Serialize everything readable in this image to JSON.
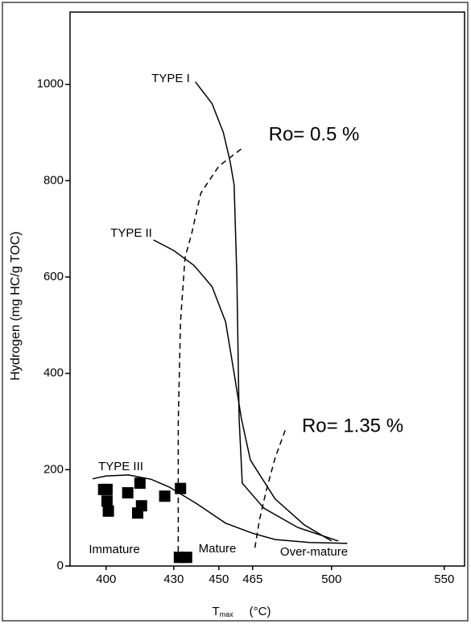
{
  "chart_data": {
    "type": "scatter",
    "y_label": "Hydrogen (mg HC/g TOC)",
    "x_label": {
      "main": "T",
      "sub": "max",
      "unit": "(°C)"
    },
    "xlim": [
      384,
      559
    ],
    "ylim": [
      0,
      1150
    ],
    "xticks": [
      400,
      430,
      450,
      465,
      500,
      550
    ],
    "yticks": [
      0,
      200,
      400,
      600,
      800,
      1000
    ],
    "series": [
      {
        "name": "TYPE I",
        "color": "#000000",
        "style": "solid",
        "x": [
          439.6,
          447,
          452,
          455,
          456.8,
          458,
          459,
          460.4,
          470,
          485,
          503
        ],
        "y": [
          1005,
          960,
          900,
          840,
          791,
          600,
          306,
          172,
          120,
          80,
          52
        ]
      },
      {
        "name": "TYPE II",
        "color": "#000000",
        "style": "solid",
        "x": [
          421,
          430,
          439,
          447,
          453,
          456.8,
          460,
          464,
          475,
          488,
          500
        ],
        "y": [
          677,
          655,
          624,
          580,
          507,
          400,
          306,
          220,
          139,
          85,
          52
        ]
      },
      {
        "name": "TYPE III",
        "color": "#000000",
        "style": "solid",
        "x": [
          394,
          400,
          410,
          420,
          428,
          440,
          453,
          465,
          475,
          490,
          507
        ],
        "y": [
          181,
          187,
          189,
          180,
          164,
          130,
          89,
          68,
          55,
          49,
          47
        ]
      },
      {
        "name": "Ro= 0.5 %",
        "color": "#000000",
        "style": "dashed",
        "x": [
          432,
          432,
          433,
          435,
          438,
          442,
          450,
          460
        ],
        "y": [
          10,
          300,
          507,
          640,
          691,
          774,
          830,
          866
        ]
      },
      {
        "name": "Ro= 1.35 %",
        "color": "#000000",
        "style": "dashed",
        "x": [
          466,
          468,
          471,
          475,
          480
        ],
        "y": [
          38,
          95,
          156,
          225,
          289
        ]
      },
      {
        "color": "#000000",
        "style": "markers",
        "x": [
          398.9,
          400.4,
          400.4,
          401,
          409.6,
          415,
          415.7,
          414,
          426,
          433,
          432.5,
          435.7
        ],
        "y": [
          159,
          159,
          135,
          114,
          152,
          172,
          125,
          110,
          145,
          161,
          18,
          18
        ]
      }
    ],
    "annotations": [
      "Immature",
      "Mature",
      "Over-mature"
    ]
  }
}
